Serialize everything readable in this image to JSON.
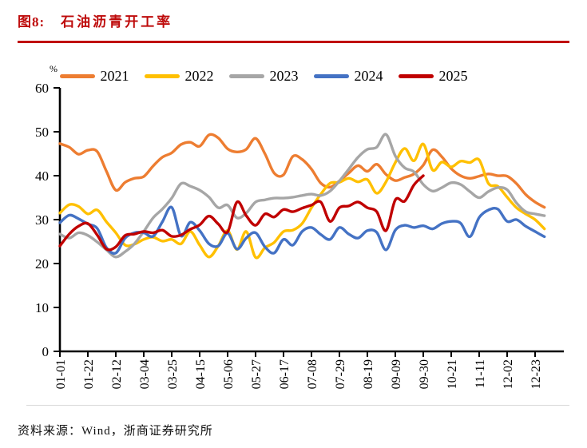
{
  "figure": {
    "label": "图8:",
    "title": "石油沥青开工率"
  },
  "source": "资料来源：Wind，浙商证券研究所",
  "colors": {
    "title_red": "#BE0B0B",
    "rule_red": "#C00000",
    "axis_black": "#000000",
    "divider_gray": "#D9D9D9"
  },
  "chart_data": {
    "type": "line",
    "title": "石油沥青开工率",
    "unit_label": "%",
    "xlabel": "",
    "ylabel": "%",
    "ylim": [
      0,
      60
    ],
    "y_ticks": [
      0,
      10,
      20,
      30,
      40,
      50,
      60
    ],
    "grid": false,
    "legend_position": "top",
    "x_tick_labels": [
      "01-01",
      "01-22",
      "02-12",
      "03-04",
      "03-25",
      "04-15",
      "05-06",
      "05-27",
      "06-17",
      "07-08",
      "07-29",
      "08-19",
      "09-09",
      "09-30",
      "10-21",
      "11-11",
      "12-02",
      "12-23"
    ],
    "x_tick_step_weeks": 3,
    "categories": [
      "01-01",
      "01-08",
      "01-15",
      "01-22",
      "01-29",
      "02-05",
      "02-12",
      "02-19",
      "02-26",
      "03-04",
      "03-11",
      "03-18",
      "03-25",
      "04-01",
      "04-08",
      "04-15",
      "04-22",
      "04-29",
      "05-06",
      "05-13",
      "05-20",
      "05-27",
      "06-03",
      "06-10",
      "06-17",
      "06-24",
      "07-01",
      "07-08",
      "07-15",
      "07-22",
      "07-29",
      "08-05",
      "08-12",
      "08-19",
      "08-26",
      "09-02",
      "09-09",
      "09-16",
      "09-23",
      "09-30",
      "10-07",
      "10-14",
      "10-21",
      "10-28",
      "11-04",
      "11-11",
      "11-18",
      "11-25",
      "12-02",
      "12-09",
      "12-16",
      "12-23",
      "12-30"
    ],
    "series": [
      {
        "name": "2021",
        "color": "#ED7D31",
        "values": [
          47.3,
          46.5,
          44.9,
          45.8,
          45.5,
          41.0,
          36.7,
          38.5,
          39.4,
          39.8,
          42.2,
          44.2,
          45.2,
          47.1,
          47.6,
          46.7,
          49.3,
          48.6,
          46.1,
          45.4,
          46.0,
          48.5,
          45.0,
          40.6,
          40.2,
          44.4,
          43.7,
          41.5,
          38.3,
          37.4,
          38.8,
          40.6,
          42.3,
          41.0,
          42.6,
          40.3,
          38.9,
          39.6,
          40.4,
          42.4,
          45.9,
          44.3,
          41.6,
          40.0,
          39.4,
          39.9,
          40.4,
          40.0,
          39.9,
          38.2,
          35.7,
          34.0,
          32.8
        ]
      },
      {
        "name": "2022",
        "color": "#FFC000",
        "values": [
          31.5,
          33.4,
          33.0,
          31.3,
          32.2,
          29.5,
          27.0,
          24.2,
          24.4,
          25.5,
          26.0,
          25.1,
          25.5,
          24.5,
          27.3,
          24.2,
          21.5,
          24.0,
          27.5,
          23.2,
          27.3,
          21.4,
          23.6,
          24.8,
          27.3,
          27.6,
          29.1,
          32.7,
          35.8,
          38.3,
          38.5,
          39.4,
          38.6,
          39.1,
          36.0,
          38.6,
          43.0,
          46.2,
          43.4,
          47.2,
          41.3,
          43.1,
          42.0,
          43.3,
          43.0,
          43.6,
          38.2,
          37.6,
          35.1,
          32.7,
          31.3,
          30.0,
          27.9
        ]
      },
      {
        "name": "2023",
        "color": "#A6A6A6",
        "values": [
          26.7,
          25.8,
          27.0,
          26.4,
          24.9,
          23.1,
          21.5,
          22.7,
          24.5,
          27.3,
          30.4,
          32.4,
          34.9,
          38.2,
          37.6,
          36.7,
          35.1,
          32.7,
          33.3,
          30.4,
          31.5,
          34.0,
          34.5,
          34.9,
          34.9,
          35.1,
          35.5,
          35.8,
          35.5,
          36.5,
          38.8,
          41.5,
          44.2,
          46.0,
          46.5,
          49.4,
          44.5,
          41.8,
          40.9,
          38.0,
          36.5,
          37.3,
          38.4,
          38.0,
          36.4,
          35.0,
          36.4,
          37.3,
          36.8,
          33.8,
          31.8,
          31.3,
          30.9
        ]
      },
      {
        "name": "2024",
        "color": "#4472C4",
        "values": [
          29.3,
          31.0,
          30.2,
          29.0,
          28.0,
          23.6,
          22.4,
          25.8,
          27.0,
          27.0,
          26.2,
          29.5,
          32.8,
          26.3,
          29.4,
          27.5,
          24.5,
          24.0,
          26.9,
          23.3,
          25.8,
          27.0,
          23.8,
          22.4,
          25.5,
          24.2,
          27.3,
          28.2,
          26.6,
          25.5,
          28.2,
          26.7,
          25.8,
          27.5,
          27.1,
          23.1,
          27.6,
          28.7,
          28.2,
          28.6,
          27.9,
          29.1,
          29.6,
          29.2,
          26.1,
          30.5,
          32.2,
          32.4,
          29.6,
          30.0,
          28.5,
          27.3,
          26.1
        ]
      },
      {
        "name": "2025",
        "color": "#C00000",
        "values": [
          24.0,
          26.7,
          28.5,
          29.1,
          26.5,
          23.3,
          23.8,
          26.4,
          26.7,
          27.3,
          27.0,
          27.6,
          26.2,
          26.5,
          27.8,
          28.8,
          30.8,
          29.0,
          27.2,
          34.0,
          30.9,
          28.7,
          31.3,
          30.6,
          32.3,
          31.8,
          32.6,
          33.3,
          34.0,
          29.6,
          32.7,
          33.1,
          34.0,
          32.7,
          31.8,
          27.5,
          34.5,
          34.2,
          37.9,
          40.0
        ]
      }
    ]
  }
}
